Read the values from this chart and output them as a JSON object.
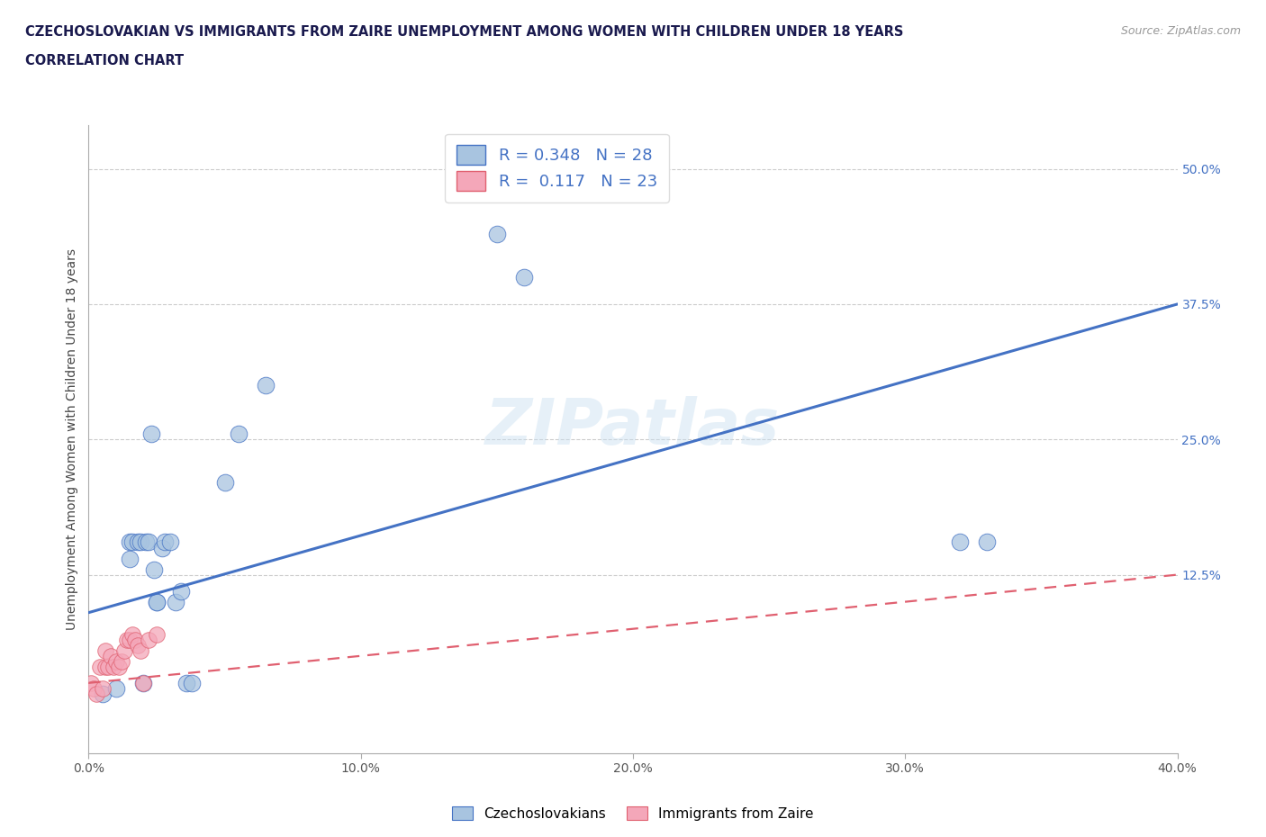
{
  "title_line1": "CZECHOSLOVAKIAN VS IMMIGRANTS FROM ZAIRE UNEMPLOYMENT AMONG WOMEN WITH CHILDREN UNDER 18 YEARS",
  "title_line2": "CORRELATION CHART",
  "source": "Source: ZipAtlas.com",
  "ylabel": "Unemployment Among Women with Children Under 18 years",
  "right_ytick_vals": [
    0.0,
    0.125,
    0.25,
    0.375,
    0.5
  ],
  "right_ytick_labels": [
    "",
    "12.5%",
    "25.0%",
    "37.5%",
    "50.0%"
  ],
  "xtick_vals": [
    0.0,
    0.1,
    0.2,
    0.3,
    0.4
  ],
  "xtick_labels": [
    "0.0%",
    "10.0%",
    "20.0%",
    "30.0%",
    "40.0%"
  ],
  "xlim": [
    0.0,
    0.4
  ],
  "ylim": [
    -0.04,
    0.54
  ],
  "czech_color": "#a8c4e0",
  "zaire_color": "#f4a7b9",
  "czech_line_color": "#4472c4",
  "zaire_line_color": "#e06070",
  "czech_R": 0.348,
  "czech_N": 28,
  "zaire_R": 0.117,
  "zaire_N": 23,
  "watermark": "ZIPatlas",
  "czech_line_x0": 0.0,
  "czech_line_y0": 0.09,
  "czech_line_x1": 0.4,
  "czech_line_y1": 0.375,
  "zaire_line_x0": 0.0,
  "zaire_line_y0": 0.025,
  "zaire_line_x1": 0.4,
  "zaire_line_y1": 0.125,
  "czech_x": [
    0.005,
    0.01,
    0.015,
    0.015,
    0.016,
    0.018,
    0.019,
    0.02,
    0.021,
    0.022,
    0.023,
    0.024,
    0.025,
    0.025,
    0.027,
    0.028,
    0.03,
    0.032,
    0.034,
    0.036,
    0.038,
    0.05,
    0.055,
    0.065,
    0.32,
    0.33,
    0.15,
    0.16
  ],
  "czech_y": [
    0.015,
    0.02,
    0.155,
    0.14,
    0.155,
    0.155,
    0.155,
    0.025,
    0.155,
    0.155,
    0.255,
    0.13,
    0.1,
    0.1,
    0.15,
    0.155,
    0.155,
    0.1,
    0.11,
    0.025,
    0.025,
    0.21,
    0.255,
    0.3,
    0.155,
    0.155,
    0.44,
    0.4
  ],
  "zaire_x": [
    0.001,
    0.002,
    0.003,
    0.004,
    0.005,
    0.006,
    0.006,
    0.007,
    0.008,
    0.009,
    0.01,
    0.011,
    0.012,
    0.013,
    0.014,
    0.015,
    0.016,
    0.017,
    0.018,
    0.019,
    0.02,
    0.022,
    0.025
  ],
  "zaire_y": [
    0.025,
    0.02,
    0.015,
    0.04,
    0.02,
    0.04,
    0.055,
    0.04,
    0.05,
    0.04,
    0.045,
    0.04,
    0.045,
    0.055,
    0.065,
    0.065,
    0.07,
    0.065,
    0.06,
    0.055,
    0.025,
    0.065,
    0.07
  ]
}
